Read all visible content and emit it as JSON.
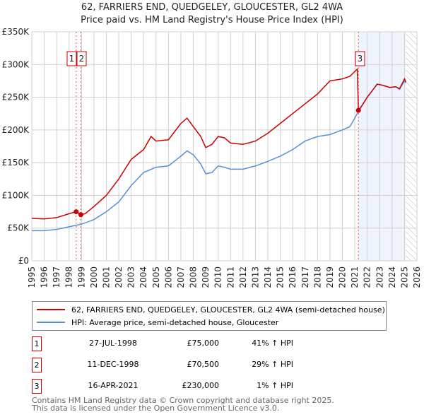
{
  "title": "62, FARRIERS END, QUEDGELEY, GLOUCESTER, GL2 4WA",
  "subtitle": "Price paid vs. HM Land Registry's House Price Index (HPI)",
  "chart_data": {
    "type": "line",
    "title": "62, FARRIERS END, QUEDGELEY, GLOUCESTER, GL2 4WA",
    "subtitle": "Price paid vs. HM Land Registry's House Price Index (HPI)",
    "xlim": [
      1995,
      2026
    ],
    "ylim": [
      0,
      350000
    ],
    "x_ticks": [
      "1995",
      "1996",
      "1997",
      "1998",
      "1999",
      "2000",
      "2001",
      "2002",
      "2003",
      "2004",
      "2005",
      "2006",
      "2007",
      "2008",
      "2009",
      "2010",
      "2011",
      "2012",
      "2013",
      "2014",
      "2015",
      "2016",
      "2017",
      "2018",
      "2019",
      "2020",
      "2021",
      "2022",
      "2023",
      "2024",
      "2025",
      "2026"
    ],
    "y_ticks": [
      {
        "v": 0,
        "label": "£0"
      },
      {
        "v": 50000,
        "label": "£50K"
      },
      {
        "v": 100000,
        "label": "£100K"
      },
      {
        "v": 150000,
        "label": "£150K"
      },
      {
        "v": 200000,
        "label": "£200K"
      },
      {
        "v": 250000,
        "label": "£250K"
      },
      {
        "v": 300000,
        "label": "£300K"
      },
      {
        "v": 350000,
        "label": "£350K"
      }
    ],
    "grid": true,
    "legend_position": "below",
    "series": [
      {
        "name": "62, FARRIERS END, QUEDGELEY, GLOUCESTER, GL2 4WA (semi-detached house)",
        "color": "#cc0000",
        "x": [
          1995,
          1996,
          1997,
          1998,
          1998.57,
          1998.95,
          1999.3,
          2000,
          2001,
          2002,
          2003,
          2004,
          2004.6,
          2005,
          2006,
          2007,
          2007.5,
          2008,
          2008.6,
          2009,
          2009.5,
          2010,
          2010.5,
          2011,
          2012,
          2013,
          2014,
          2015,
          2016,
          2017,
          2018,
          2019,
          2020,
          2020.6,
          2021.2,
          2021.29,
          2021.6,
          2022,
          2022.8,
          2023.3,
          2023.8,
          2024.3,
          2024.6,
          2025,
          2025.1
        ],
        "y": [
          65000,
          64000,
          66000,
          72000,
          75000,
          70500,
          72000,
          83000,
          100000,
          125000,
          155000,
          170000,
          190000,
          183000,
          185000,
          210000,
          218000,
          205000,
          190000,
          173000,
          178000,
          190000,
          188000,
          180000,
          178000,
          183000,
          195000,
          210000,
          225000,
          240000,
          255000,
          275000,
          278000,
          282000,
          293000,
          230000,
          238000,
          250000,
          270000,
          268000,
          265000,
          266000,
          263000,
          278000,
          273000
        ]
      },
      {
        "name": "HPI: Average price, semi-detached house, Gloucester",
        "color": "#5b8fd0",
        "x": [
          1995,
          1996,
          1997,
          1998,
          1999,
          2000,
          2001,
          2002,
          2003,
          2004,
          2005,
          2006,
          2007,
          2007.5,
          2008,
          2008.6,
          2009,
          2009.5,
          2010,
          2010.5,
          2011,
          2012,
          2013,
          2014,
          2015,
          2016,
          2017,
          2018,
          2019,
          2020,
          2020.6,
          2021.29,
          2022,
          2022.8,
          2023.3,
          2023.8,
          2024.3,
          2024.6,
          2025,
          2025.1
        ],
        "y": [
          46000,
          46000,
          48000,
          52000,
          56000,
          63000,
          75000,
          90000,
          115000,
          135000,
          143000,
          145000,
          160000,
          168000,
          162000,
          148000,
          133000,
          135000,
          145000,
          143000,
          140000,
          140000,
          145000,
          152000,
          160000,
          170000,
          183000,
          190000,
          193000,
          200000,
          205000,
          228000,
          250000,
          270000,
          268000,
          265000,
          266000,
          262000,
          275000,
          272000
        ]
      }
    ],
    "annotations": [
      {
        "label": "1",
        "x": 1998.57,
        "value": 75000
      },
      {
        "label": "2",
        "x": 1998.95,
        "value": 70500
      },
      {
        "label": "3",
        "x": 2021.29,
        "value": 230000
      }
    ],
    "shaded_region": [
      2021.29,
      2025.1
    ],
    "hatched_region": [
      2025.1,
      2026
    ]
  },
  "legend": [
    {
      "label": "62, FARRIERS END, QUEDGELEY, GLOUCESTER, GL2 4WA (semi-detached house)",
      "color": "#cc0000"
    },
    {
      "label": "HPI: Average price, semi-detached house, Gloucester",
      "color": "#5b8fd0"
    }
  ],
  "transactions": [
    {
      "num": "1",
      "date": "27-JUL-1998",
      "price": "£75,000",
      "hpi": "41% ↑ HPI"
    },
    {
      "num": "2",
      "date": "11-DEC-1998",
      "price": "£70,500",
      "hpi": "29% ↑ HPI"
    },
    {
      "num": "3",
      "date": "16-APR-2021",
      "price": "£230,000",
      "hpi": "1% ↑ HPI"
    }
  ],
  "footer": [
    "Contains HM Land Registry data © Crown copyright and database right 2025.",
    "This data is licensed under the Open Government Licence v3.0."
  ]
}
